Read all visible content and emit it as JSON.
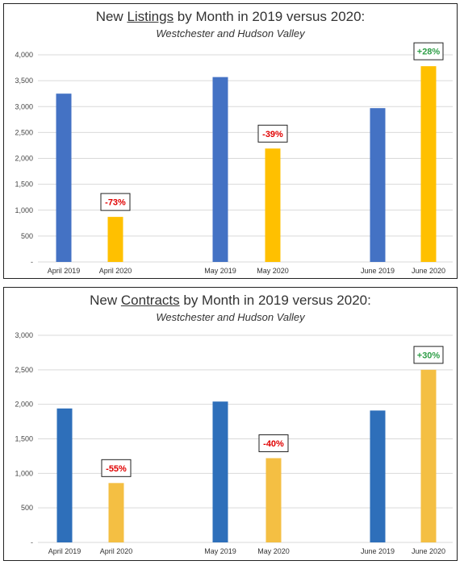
{
  "colors": {
    "blue": "#4472c4",
    "blue2": "#2e6fba",
    "gold": "#ffc000",
    "gold2": "#f4bf43",
    "red": "#e00000",
    "green": "#2e9e47"
  },
  "chart_data": [
    {
      "type": "bar",
      "title_prefix": "New ",
      "title_emph": "Listings",
      "title_suffix": " by Month in 2019 versus 2020:",
      "subtitle": "Westchester and Hudson Valley",
      "categories": [
        "April 2019",
        "April 2020",
        "May 2019",
        "May 2020",
        "June 2019",
        "June 2020"
      ],
      "values": [
        3250,
        870,
        3570,
        2190,
        2970,
        3780
      ],
      "yticks": [
        "-",
        "500",
        "1,000",
        "1,500",
        "2,000",
        "2,500",
        "3,000",
        "3,500",
        "4,000"
      ],
      "ylim": [
        0,
        4000
      ],
      "grid": true,
      "annotations": [
        {
          "label": "-73%",
          "bar": 1,
          "style": "red"
        },
        {
          "label": "-39%",
          "bar": 3,
          "style": "red"
        },
        {
          "label": "+28%",
          "bar": 5,
          "style": "green"
        }
      ]
    },
    {
      "type": "bar",
      "title_prefix": "New ",
      "title_emph": "Contracts",
      "title_suffix": " by Month in 2019 versus 2020:",
      "subtitle": "Westchester and Hudson Valley",
      "categories": [
        "April 2019",
        "April 2020",
        "May 2019",
        "May 2020",
        "June 2019",
        "June 2020"
      ],
      "values": [
        1940,
        860,
        2040,
        1220,
        1910,
        2500
      ],
      "yticks": [
        "-",
        "500",
        "1,000",
        "1,500",
        "2,000",
        "2,500",
        "3,000"
      ],
      "ylim": [
        0,
        3000
      ],
      "grid": true,
      "annotations": [
        {
          "label": "-55%",
          "bar": 1,
          "style": "red"
        },
        {
          "label": "-40%",
          "bar": 3,
          "style": "red"
        },
        {
          "label": "+30%",
          "bar": 5,
          "style": "green"
        }
      ]
    }
  ]
}
